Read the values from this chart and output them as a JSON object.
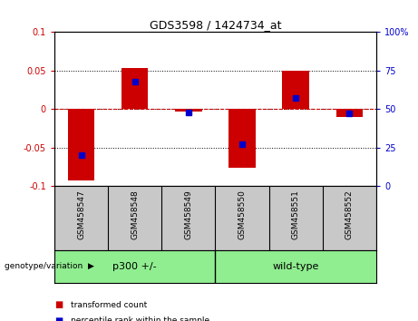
{
  "title": "GDS3598 / 1424734_at",
  "samples": [
    "GSM458547",
    "GSM458548",
    "GSM458549",
    "GSM458550",
    "GSM458551",
    "GSM458552"
  ],
  "red_values": [
    -0.092,
    0.053,
    -0.003,
    -0.076,
    0.05,
    -0.01
  ],
  "blue_percentiles": [
    20,
    68,
    48,
    27,
    57,
    47
  ],
  "group1_label": "p300 +/-",
  "group2_label": "wild-type",
  "group_label_prefix": "genotype/variation",
  "ylim_left": [
    -0.1,
    0.1
  ],
  "ylim_right": [
    0,
    100
  ],
  "yticks_left": [
    -0.1,
    -0.05,
    0,
    0.05,
    0.1
  ],
  "ytick_labels_left": [
    "-0.1",
    "-0.05",
    "0",
    "0.05",
    "0.1"
  ],
  "yticks_right": [
    0,
    25,
    50,
    75,
    100
  ],
  "ytick_labels_right": [
    "0",
    "25",
    "50",
    "75",
    "100%"
  ],
  "bar_color": "#CC0000",
  "dot_color": "#0000CC",
  "bg_color": "#FFFFFF",
  "plot_bg_color": "#FFFFFF",
  "zero_line_color": "#CC0000",
  "tick_label_color_left": "#CC0000",
  "tick_label_color_right": "#0000CC",
  "bar_width": 0.5,
  "green_color": "#90EE90",
  "gray_color": "#C8C8C8",
  "legend_items": [
    "transformed count",
    "percentile rank within the sample"
  ]
}
